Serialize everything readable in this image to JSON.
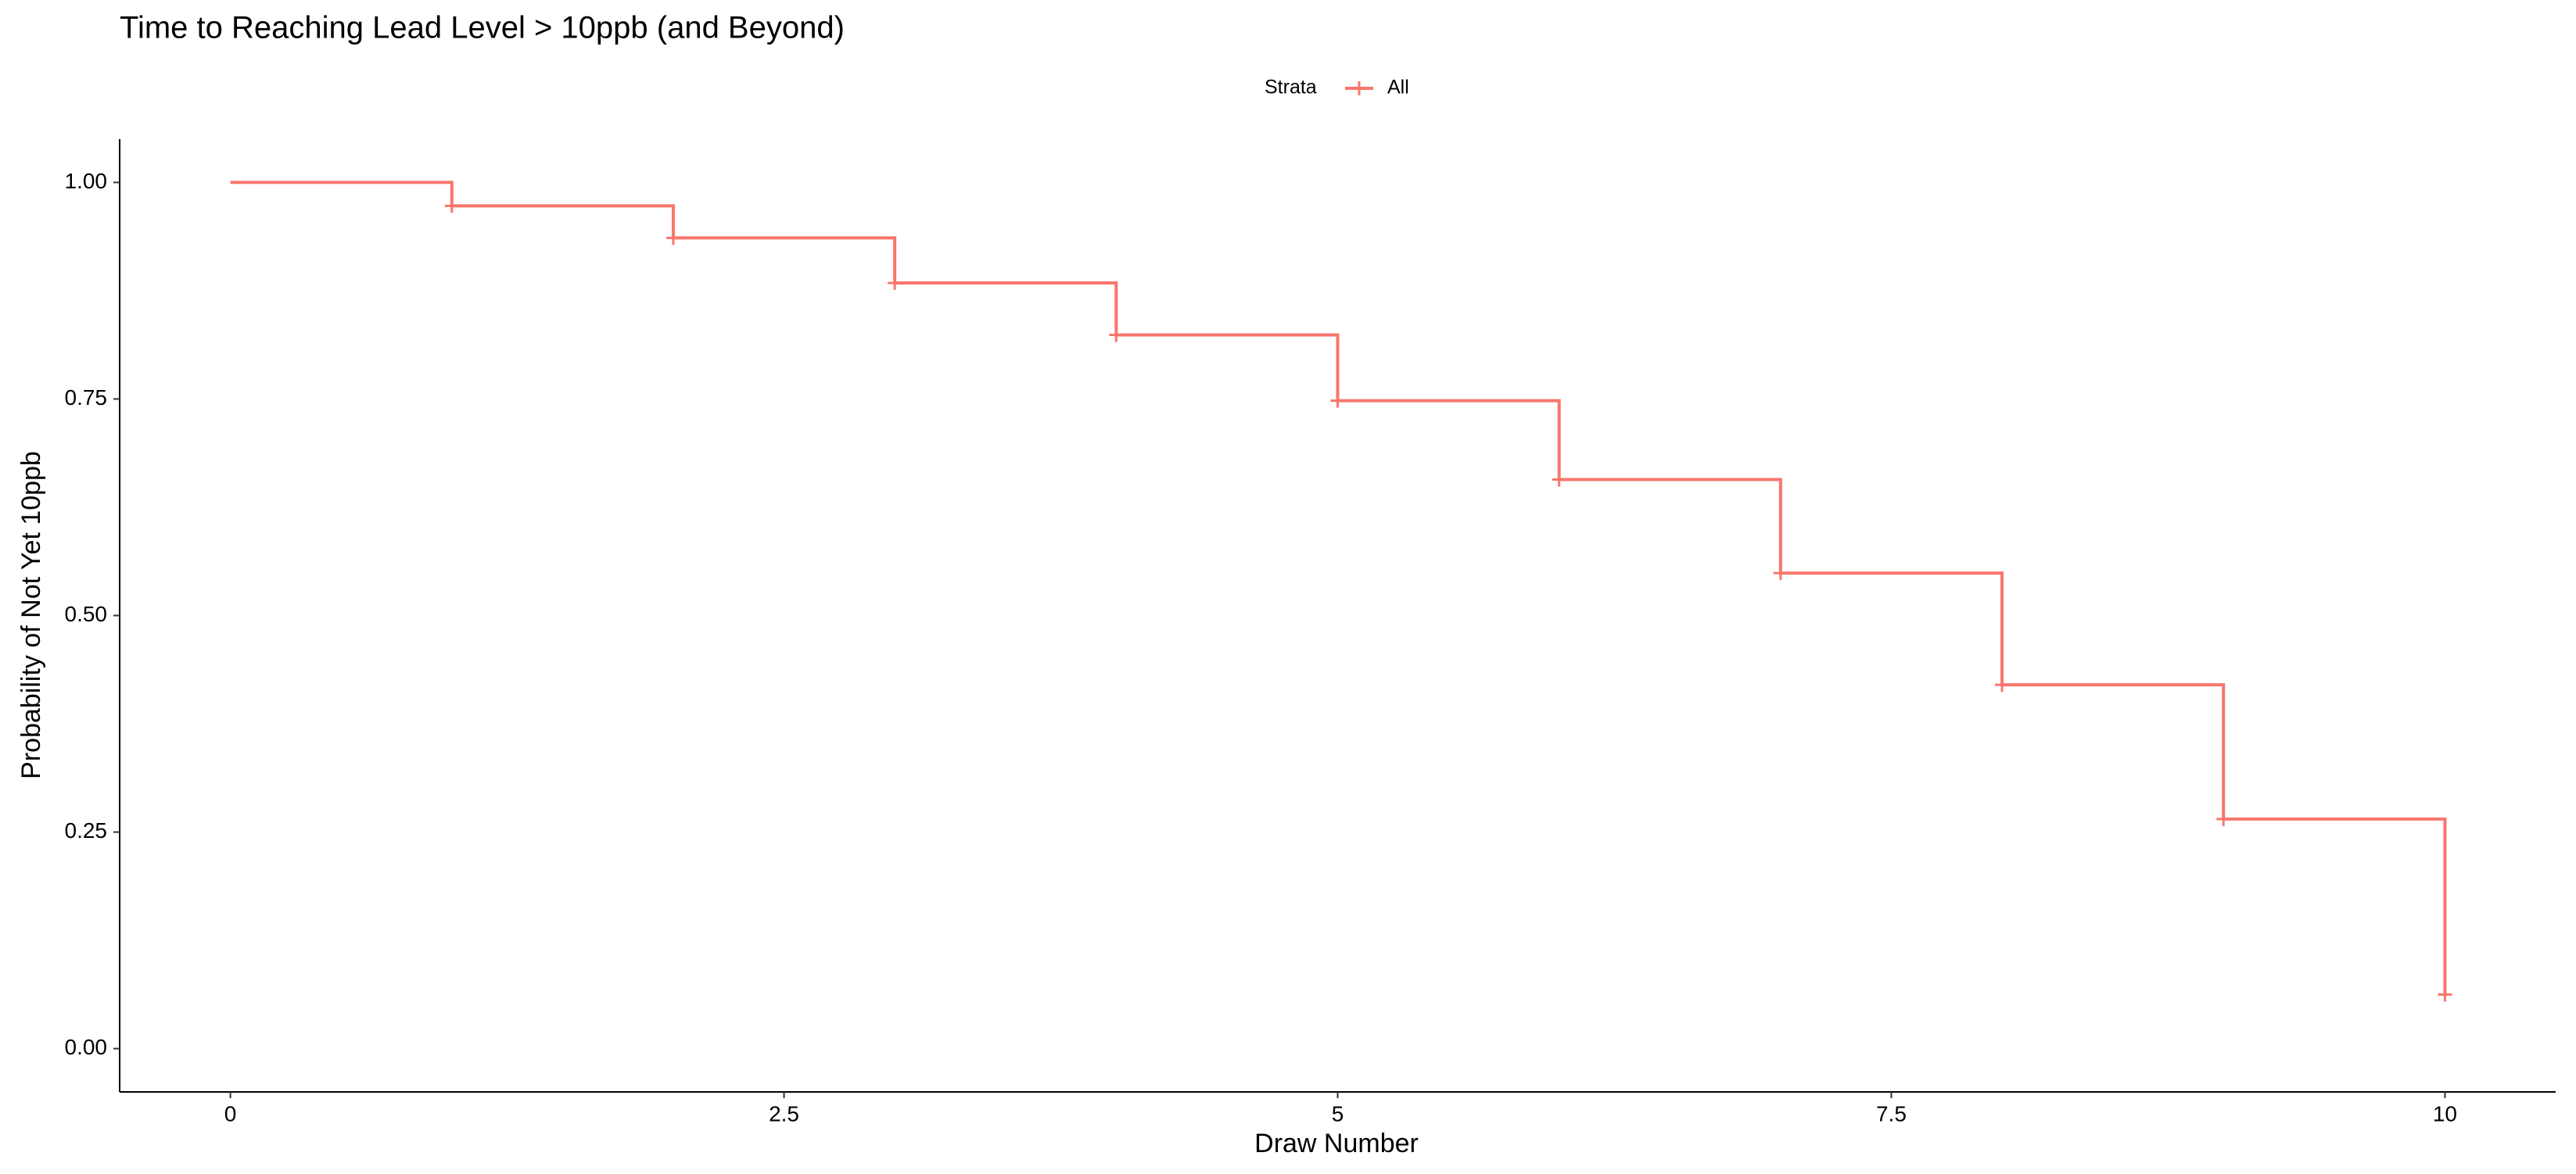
{
  "chart_data": {
    "type": "step",
    "title": "Time to Reaching Lead Level > 10ppb (and Beyond)",
    "x_label": "Draw Number",
    "y_label": "Probability of Not Yet 10ppb",
    "legend_title": "Strata",
    "x": [
      0,
      1,
      2,
      3,
      4,
      5,
      6,
      7,
      8,
      9,
      10
    ],
    "series": [
      {
        "name": "All",
        "color": "#F8766D",
        "values": [
          1.0,
          0.973,
          0.936,
          0.884,
          0.824,
          0.748,
          0.657,
          0.549,
          0.42,
          0.265,
          0.0625
        ]
      }
    ],
    "xlim": [
      -0.5,
      10.5
    ],
    "xticks": [
      0,
      2.5,
      5,
      7.5,
      10
    ],
    "ylim": [
      -0.05,
      1.05
    ],
    "yticks": [
      {
        "value": 0,
        "label": "0.00"
      },
      {
        "value": 0.25,
        "label": "0.25"
      },
      {
        "value": 0.5,
        "label": "0.50"
      },
      {
        "value": 0.75,
        "label": "0.75"
      },
      {
        "value": 1,
        "label": "1.00"
      }
    ],
    "grid": false,
    "legend_position": "top"
  }
}
